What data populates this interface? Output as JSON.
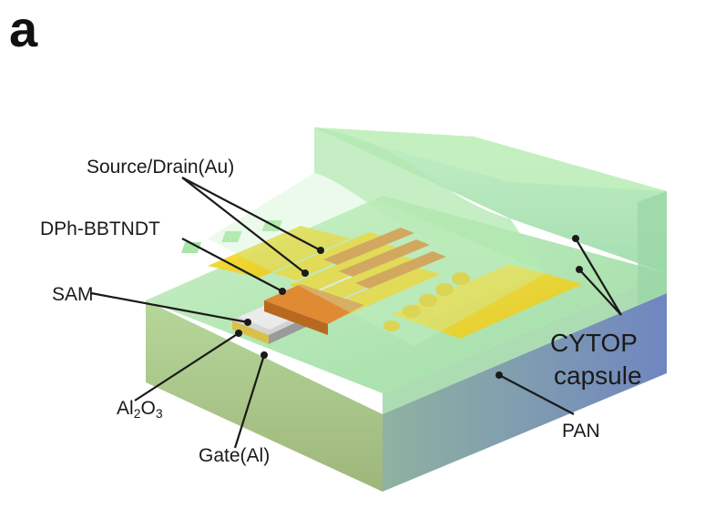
{
  "panel_label": "a",
  "labels": {
    "source_drain": "Source/Drain(Au)",
    "semiconductor": "DPh-BBTNDT",
    "sam": "SAM",
    "dielectric_main": "Al",
    "dielectric_sub2": "2",
    "dielectric_mid": "O",
    "dielectric_sub3": "3",
    "gate": "Gate(Al)",
    "substrate": "PAN",
    "encapsulation_line1": "CYTOP",
    "encapsulation_line2": "capsule"
  },
  "colors": {
    "cytop": "#a8e6a8",
    "gold": "#f2d21a",
    "organic": "#d9822b",
    "aluminum": "#d8d8d8",
    "pan": "#7f98c9"
  }
}
